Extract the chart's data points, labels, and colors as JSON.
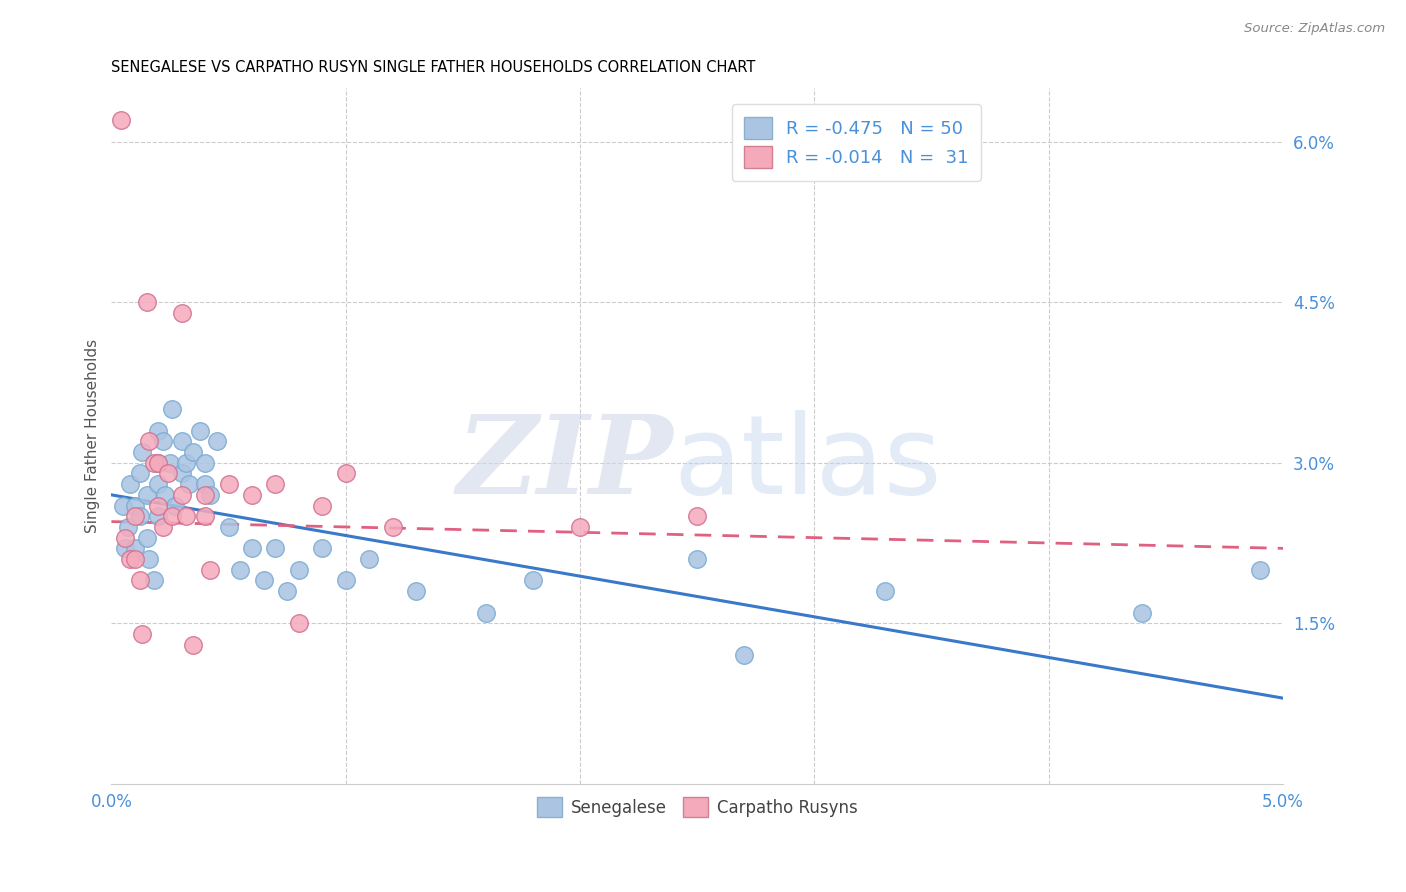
{
  "title": "SENEGALESE VS CARPATHO RUSYN SINGLE FATHER HOUSEHOLDS CORRELATION CHART",
  "source": "Source: ZipAtlas.com",
  "ylabel": "Single Father Households",
  "xlim": [
    0.0,
    0.05
  ],
  "ylim": [
    0.0,
    0.065
  ],
  "y_ticks_right": [
    0.015,
    0.03,
    0.045,
    0.06
  ],
  "y_tick_labels_right": [
    "1.5%",
    "3.0%",
    "4.5%",
    "6.0%"
  ],
  "legend_R1": "-0.475",
  "legend_N1": "50",
  "legend_R2": "-0.014",
  "legend_N2": "31",
  "color_blue": "#aac4e2",
  "color_blue_line": "#3a78c9",
  "color_pink": "#f5aabb",
  "color_pink_line": "#e06080",
  "color_label": "#4a90d9",
  "blue_line_x0": 0.0,
  "blue_line_y0": 0.027,
  "blue_line_x1": 0.05,
  "blue_line_y1": 0.008,
  "pink_line_x0": 0.0,
  "pink_line_y0": 0.0245,
  "pink_line_x1": 0.05,
  "pink_line_y1": 0.022,
  "senegalese_x": [
    0.0005,
    0.0006,
    0.0007,
    0.0008,
    0.001,
    0.001,
    0.0012,
    0.0012,
    0.0013,
    0.0015,
    0.0015,
    0.0016,
    0.0018,
    0.002,
    0.002,
    0.002,
    0.002,
    0.0022,
    0.0023,
    0.0025,
    0.0026,
    0.0027,
    0.003,
    0.003,
    0.0032,
    0.0033,
    0.0035,
    0.0038,
    0.004,
    0.004,
    0.0042,
    0.0045,
    0.005,
    0.0055,
    0.006,
    0.0065,
    0.007,
    0.0075,
    0.008,
    0.009,
    0.01,
    0.011,
    0.013,
    0.016,
    0.018,
    0.025,
    0.027,
    0.033,
    0.044,
    0.049
  ],
  "senegalese_y": [
    0.026,
    0.022,
    0.024,
    0.028,
    0.022,
    0.026,
    0.025,
    0.029,
    0.031,
    0.023,
    0.027,
    0.021,
    0.019,
    0.03,
    0.033,
    0.028,
    0.025,
    0.032,
    0.027,
    0.03,
    0.035,
    0.026,
    0.029,
    0.032,
    0.03,
    0.028,
    0.031,
    0.033,
    0.028,
    0.03,
    0.027,
    0.032,
    0.024,
    0.02,
    0.022,
    0.019,
    0.022,
    0.018,
    0.02,
    0.022,
    0.019,
    0.021,
    0.018,
    0.016,
    0.019,
    0.021,
    0.012,
    0.018,
    0.016,
    0.02
  ],
  "carpatho_x": [
    0.0004,
    0.0006,
    0.0008,
    0.001,
    0.001,
    0.0012,
    0.0013,
    0.0015,
    0.0016,
    0.0018,
    0.002,
    0.002,
    0.0022,
    0.0024,
    0.0026,
    0.003,
    0.003,
    0.0032,
    0.0035,
    0.004,
    0.004,
    0.0042,
    0.005,
    0.006,
    0.007,
    0.008,
    0.009,
    0.01,
    0.012,
    0.02,
    0.025
  ],
  "carpatho_y": [
    0.062,
    0.023,
    0.021,
    0.025,
    0.021,
    0.019,
    0.014,
    0.045,
    0.032,
    0.03,
    0.03,
    0.026,
    0.024,
    0.029,
    0.025,
    0.044,
    0.027,
    0.025,
    0.013,
    0.027,
    0.025,
    0.02,
    0.028,
    0.027,
    0.028,
    0.015,
    0.026,
    0.029,
    0.024,
    0.024,
    0.025
  ]
}
